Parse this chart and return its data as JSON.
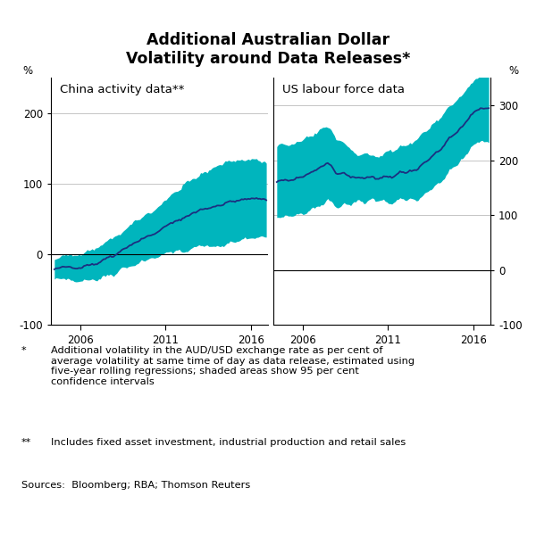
{
  "title": "Additional Australian Dollar\nVolatility around Data Releases*",
  "title_fontsize": 12.5,
  "panel1_label": "China activity data**",
  "panel2_label": "US labour force data",
  "ylabel_left": "%",
  "ylabel_right": "%",
  "ylim_left": [
    -100,
    250
  ],
  "ylim_right": [
    -100,
    350
  ],
  "yticks_left": [
    -100,
    0,
    100,
    200
  ],
  "yticks_right": [
    -100,
    0,
    100,
    200,
    300
  ],
  "xticks": [
    2006,
    2011,
    2016
  ],
  "xmin": 2004.3,
  "xmax": 2017.0,
  "fill_color": "#00B5BD",
  "line_color": "#1C2F80",
  "background_color": "#ffffff",
  "footnote1_star": "*",
  "footnote1_text": "Additional volatility in the AUD/USD exchange rate as per cent of\naverage volatility at same time of day as data release, estimated using\nfive-year rolling regressions; shaded areas show 95 per cent\nconfidence intervals",
  "footnote2_star": "**",
  "footnote2_text": "Includes fixed asset investment, industrial production and retail sales",
  "sources_text": "Sources:  Bloomberg; RBA; Thomson Reuters"
}
